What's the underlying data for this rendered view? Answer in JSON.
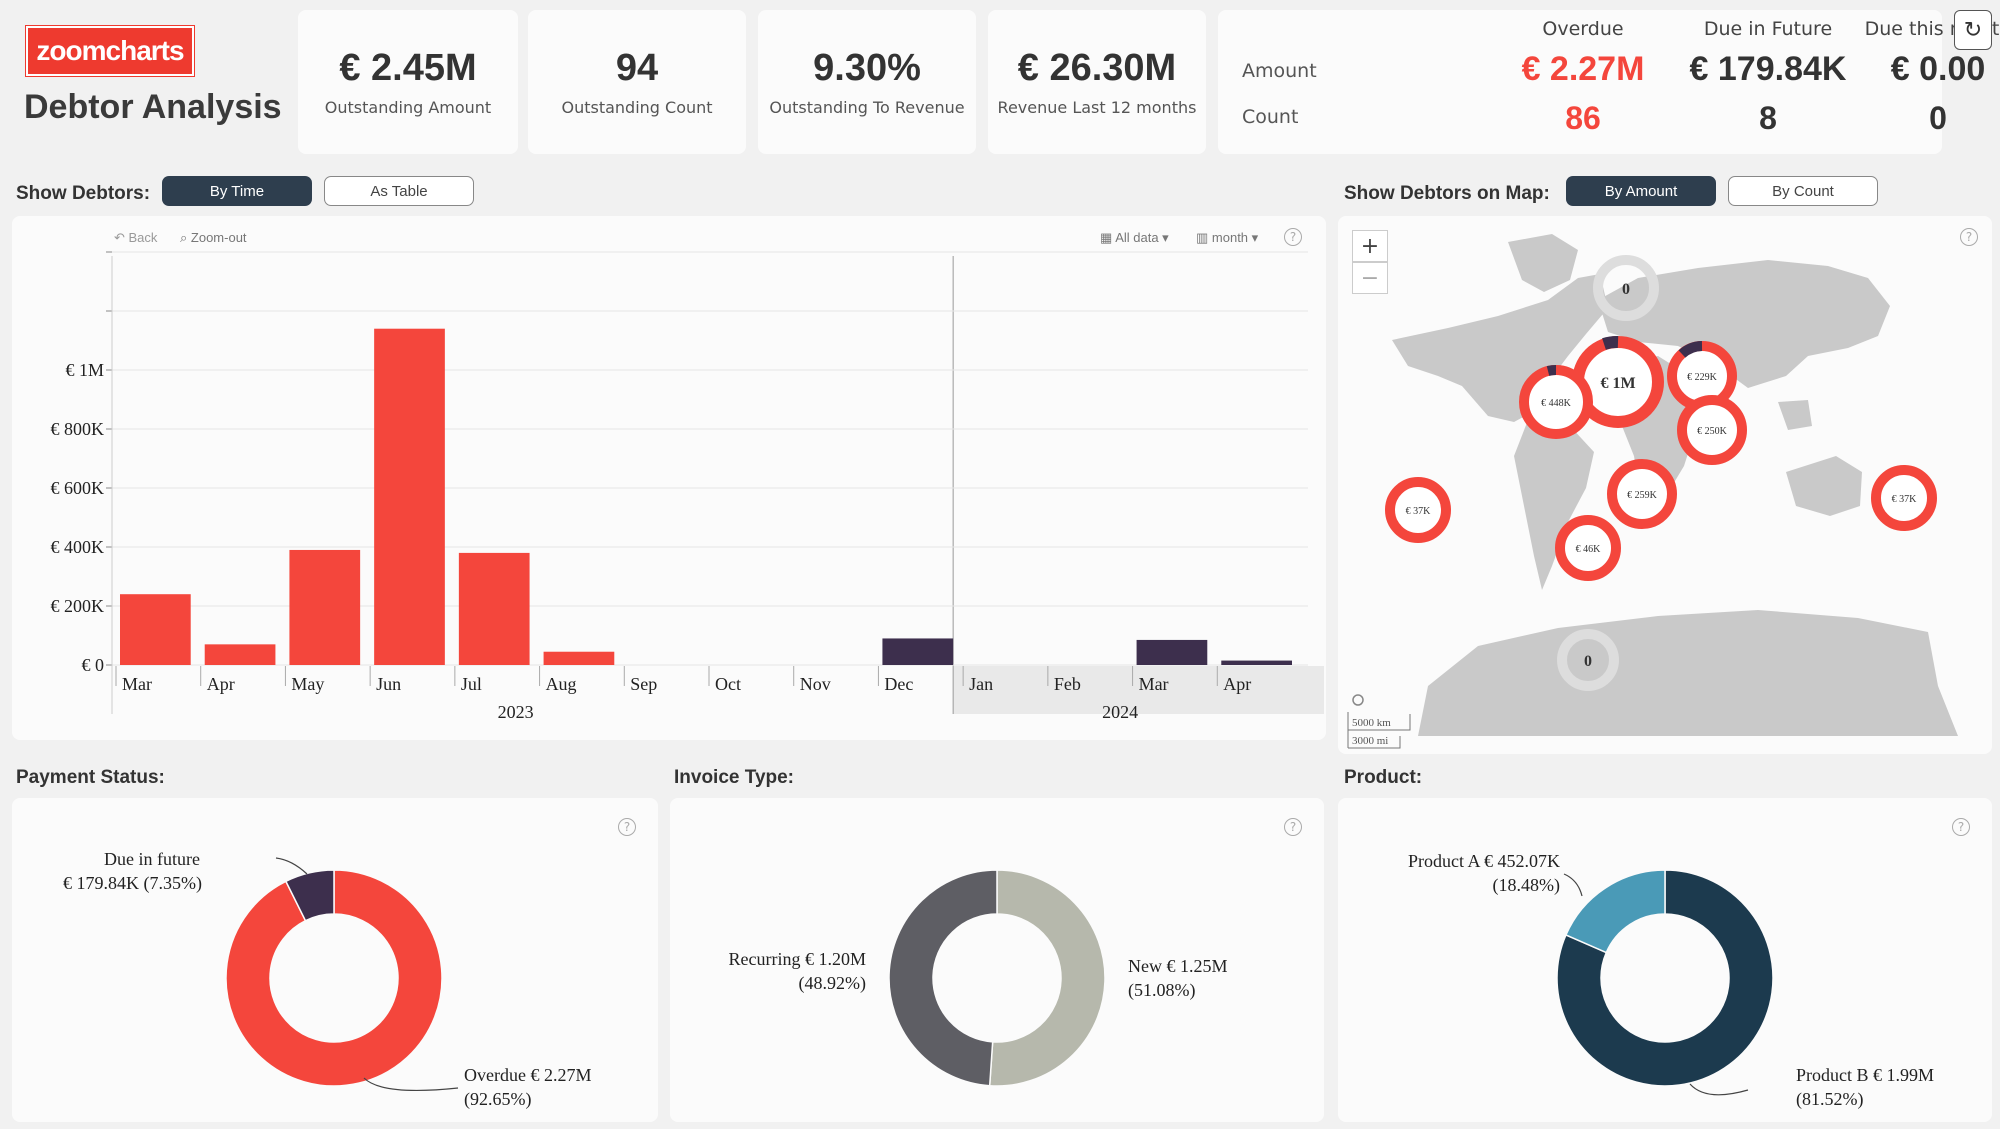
{
  "header": {
    "logo": "zoomcharts",
    "title": "Debtor Analysis"
  },
  "kpis": [
    {
      "value": "€ 2.45M",
      "label": "Outstanding Amount"
    },
    {
      "value": "94",
      "label": "Outstanding Count"
    },
    {
      "value": "9.30%",
      "label": "Outstanding To Revenue"
    },
    {
      "value": "€ 26.30M",
      "label": "Revenue Last 12 months"
    }
  ],
  "summary": {
    "cols": [
      "Overdue",
      "Due in Future",
      "Due this month"
    ],
    "row_labels": [
      "Amount",
      "Count"
    ],
    "amounts": [
      "€ 2.27M",
      "€ 179.84K",
      "€ 0.00"
    ],
    "counts": [
      "86",
      "8",
      "0"
    ]
  },
  "debtors": {
    "label": "Show Debtors:",
    "by_time": "By Time",
    "as_table": "As Table"
  },
  "map_section": {
    "label": "Show Debtors on Map:",
    "by_amount": "By Amount",
    "by_count": "By Count"
  },
  "toolbar": {
    "back": "Back",
    "zoom_out": "Zoom-out",
    "all_data": "All data",
    "period": "month"
  },
  "sections": {
    "payment": "Payment Status:",
    "invoice": "Invoice Type:",
    "product": "Product:"
  },
  "map": {
    "scale_km": "5000 km",
    "scale_mi": "3000 mi",
    "bubbles": [
      "0",
      "€ 1M",
      "€ 229K",
      "€ 448K",
      "€ 250K",
      "€ 259K",
      "€ 37K",
      "€ 37K",
      "€ 46K",
      "0"
    ]
  },
  "colors": {
    "overdue": "#f4463c",
    "future": "#3d2f4d",
    "recurring": "#5e5e64",
    "new": "#b6b8ac",
    "prodA": "#4a9ab7",
    "prodB": "#1c3a4e"
  },
  "chart_data": [
    {
      "type": "bar",
      "title": "",
      "categories": [
        "Mar",
        "Apr",
        "May",
        "Jun",
        "Jul",
        "Aug",
        "Sep",
        "Oct",
        "Nov",
        "Dec",
        "Jan",
        "Feb",
        "Mar",
        "Apr"
      ],
      "years": [
        "2023",
        "2024"
      ],
      "values": [
        240000,
        70000,
        390000,
        1140000,
        380000,
        45000,
        0,
        0,
        0,
        90000,
        0,
        0,
        85000,
        15000
      ],
      "colors": [
        "overdue",
        "overdue",
        "overdue",
        "overdue",
        "overdue",
        "overdue",
        "overdue",
        "overdue",
        "overdue",
        "future",
        "future",
        "future",
        "future",
        "future"
      ],
      "yticks": [
        "€ 0",
        "€ 200K",
        "€ 400K",
        "€ 600K",
        "€ 800K",
        "€ 1M"
      ],
      "ylim": [
        0,
        1400000
      ]
    },
    {
      "type": "pie",
      "labels": [
        "Overdue € 2.27M",
        "Due in future"
      ],
      "sublabels": [
        "(92.65%)",
        "€ 179.84K (7.35%)"
      ],
      "values": [
        92.65,
        7.35
      ],
      "colors": [
        "overdue",
        "future"
      ]
    },
    {
      "type": "pie",
      "labels": [
        "New € 1.25M",
        "Recurring € 1.20M"
      ],
      "sublabels": [
        "(51.08%)",
        "(48.92%)"
      ],
      "values": [
        51.08,
        48.92
      ],
      "colors": [
        "new",
        "recurring"
      ]
    },
    {
      "type": "pie",
      "labels": [
        "Product B € 1.99M",
        "Product A € 452.07K"
      ],
      "sublabels": [
        "(81.52%)",
        "(18.48%)"
      ],
      "values": [
        81.52,
        18.48
      ],
      "colors": [
        "prodB",
        "prodA"
      ]
    }
  ]
}
